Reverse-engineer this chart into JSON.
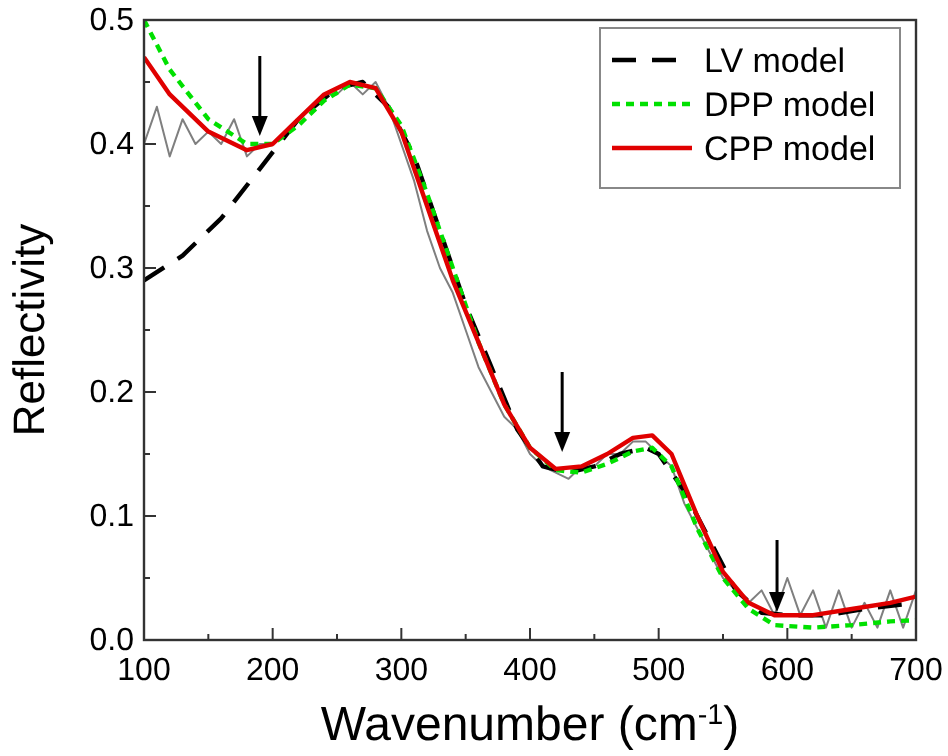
{
  "chart_data": {
    "type": "line",
    "xlabel": "Wavenumber (cm$^{-1}$)",
    "ylabel": "Reflectivity",
    "xlim": [
      100,
      700
    ],
    "xticks": [
      100,
      {
        "value": 150,
        "label": null
      },
      200,
      {
        "value": 250,
        "label": null
      },
      300,
      {
        "value": 350,
        "label": null
      },
      400,
      {
        "value": 450,
        "label": null
      },
      500,
      {
        "value": 550,
        "label": null
      },
      600,
      {
        "value": 650,
        "label": null
      },
      700
    ],
    "ylim": [
      0,
      0.5
    ],
    "yticks": [
      {
        "value": 0,
        "label": "0.0"
      },
      {
        "value": 0.05,
        "label": null
      },
      0.1,
      {
        "value": 0.15,
        "label": null
      },
      0.2,
      {
        "value": 0.25,
        "label": null
      },
      0.3,
      {
        "value": 0.35,
        "label": null
      },
      0.4,
      {
        "value": 0.45,
        "label": null
      },
      0.5
    ],
    "grid": false,
    "legend": "top right",
    "marker": "none",
    "series": [
      {
        "color": "#7f7f7f",
        "line_style": "solid",
        "x": [
          100,
          110,
          120,
          130,
          140,
          150,
          160,
          170,
          180,
          190,
          200,
          210,
          220,
          230,
          240,
          250,
          260,
          270,
          280,
          290,
          300,
          310,
          320,
          330,
          340,
          350,
          360,
          370,
          380,
          390,
          400,
          410,
          420,
          430,
          440,
          450,
          460,
          470,
          480,
          490,
          500,
          510,
          520,
          530,
          540,
          550,
          560,
          570,
          580,
          590,
          600,
          610,
          620,
          630,
          640,
          650,
          660,
          670,
          680,
          690,
          700
        ],
        "values": [
          0.4,
          0.43,
          0.39,
          0.42,
          0.4,
          0.41,
          0.4,
          0.42,
          0.39,
          0.4,
          0.4,
          0.41,
          0.42,
          0.43,
          0.44,
          0.44,
          0.45,
          0.44,
          0.45,
          0.43,
          0.4,
          0.37,
          0.33,
          0.3,
          0.28,
          0.25,
          0.22,
          0.2,
          0.18,
          0.17,
          0.15,
          0.14,
          0.135,
          0.13,
          0.14,
          0.14,
          0.15,
          0.15,
          0.16,
          0.16,
          0.15,
          0.14,
          0.11,
          0.09,
          0.07,
          0.05,
          0.04,
          0.03,
          0.04,
          0.02,
          0.05,
          0.02,
          0.04,
          0.01,
          0.04,
          0.01,
          0.03,
          0.01,
          0.04,
          0.01,
          0.04
        ]
      },
      {
        "name": "LV model",
        "color": "#000000",
        "line_style": "dashed",
        "x": [
          100,
          130,
          160,
          190,
          220,
          250,
          270,
          290,
          310,
          330,
          350,
          370,
          390,
          410,
          430,
          450,
          470,
          490,
          500,
          520,
          540,
          560,
          580,
          600,
          630,
          660,
          700
        ],
        "values": [
          0.29,
          0.31,
          0.34,
          0.38,
          0.42,
          0.445,
          0.45,
          0.43,
          0.39,
          0.33,
          0.27,
          0.22,
          0.17,
          0.14,
          0.135,
          0.14,
          0.15,
          0.155,
          0.15,
          0.12,
          0.08,
          0.04,
          0.022,
          0.02,
          0.02,
          0.025,
          0.03
        ]
      },
      {
        "name": "DPP model",
        "color": "#00e000",
        "line_style": "dotted",
        "x": [
          100,
          120,
          150,
          180,
          200,
          220,
          240,
          260,
          280,
          300,
          320,
          340,
          360,
          380,
          400,
          420,
          440,
          460,
          480,
          495,
          510,
          530,
          550,
          570,
          590,
          620,
          650,
          680,
          700
        ],
        "values": [
          0.5,
          0.46,
          0.42,
          0.4,
          0.4,
          0.415,
          0.435,
          0.448,
          0.445,
          0.415,
          0.36,
          0.3,
          0.24,
          0.19,
          0.155,
          0.137,
          0.135,
          0.142,
          0.152,
          0.155,
          0.14,
          0.09,
          0.05,
          0.025,
          0.012,
          0.01,
          0.012,
          0.015,
          0.016
        ]
      },
      {
        "name": "CPP model",
        "color": "#e00000",
        "line_style": "solid",
        "x": [
          100,
          120,
          150,
          180,
          200,
          220,
          240,
          260,
          280,
          300,
          320,
          340,
          360,
          380,
          400,
          420,
          440,
          460,
          480,
          495,
          510,
          530,
          550,
          570,
          590,
          620,
          650,
          680,
          700
        ],
        "values": [
          0.47,
          0.44,
          0.41,
          0.395,
          0.4,
          0.42,
          0.44,
          0.45,
          0.445,
          0.41,
          0.35,
          0.29,
          0.24,
          0.19,
          0.155,
          0.138,
          0.14,
          0.15,
          0.163,
          0.165,
          0.15,
          0.1,
          0.055,
          0.03,
          0.02,
          0.02,
          0.025,
          0.03,
          0.035
        ]
      }
    ]
  }
}
